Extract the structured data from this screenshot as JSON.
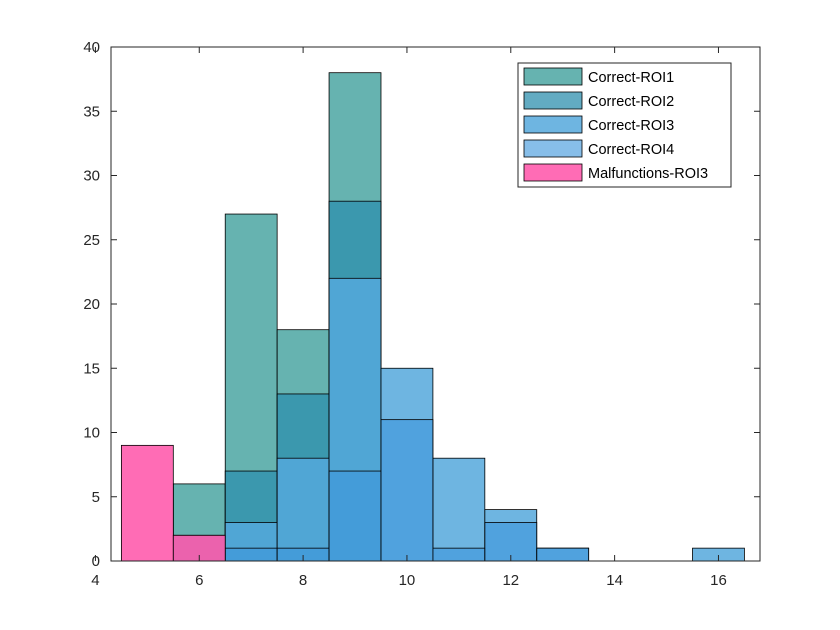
{
  "chart_data": {
    "type": "bar",
    "subtype": "overlaid-histogram",
    "title": "",
    "xlabel": "",
    "ylabel": "",
    "xlim": [
      4.3,
      16.8
    ],
    "ylim": [
      0,
      40
    ],
    "xticks": [
      4,
      6,
      8,
      10,
      12,
      14,
      16
    ],
    "yticks": [
      0,
      5,
      10,
      15,
      20,
      25,
      30,
      35,
      40
    ],
    "bin_width": 1,
    "bin_centers": [
      5,
      6,
      7,
      8,
      9,
      10,
      11,
      12,
      13,
      14,
      15,
      16
    ],
    "legend_position": "top-right",
    "series": [
      {
        "name": "Correct-ROI1",
        "color": "#4fa8a4",
        "opacity": 0.87,
        "values": [
          0,
          6,
          27,
          18,
          38,
          0,
          0,
          0,
          0,
          0,
          0,
          0
        ]
      },
      {
        "name": "Correct-ROI2",
        "color": "#2d8fae",
        "opacity": 0.75,
        "values": [
          0,
          2,
          7,
          13,
          28,
          0,
          0,
          0,
          0,
          0,
          0,
          0
        ]
      },
      {
        "name": "Correct-ROI3",
        "color": "#55a8dc",
        "opacity": 0.85,
        "values": [
          0,
          0,
          3,
          8,
          22,
          15,
          8,
          4,
          1,
          0,
          0,
          1
        ]
      },
      {
        "name": "Correct-ROI4",
        "color": "#3d96dc",
        "opacity": 0.62,
        "values": [
          0,
          0,
          1,
          1,
          7,
          11,
          1,
          3,
          1,
          0,
          0,
          0
        ]
      },
      {
        "name": "Malfunctions-ROI3",
        "color": "#ff5cad",
        "opacity": 0.9,
        "values": [
          9,
          2,
          0,
          0,
          0,
          0,
          0,
          0,
          0,
          0,
          0,
          0
        ]
      }
    ]
  }
}
